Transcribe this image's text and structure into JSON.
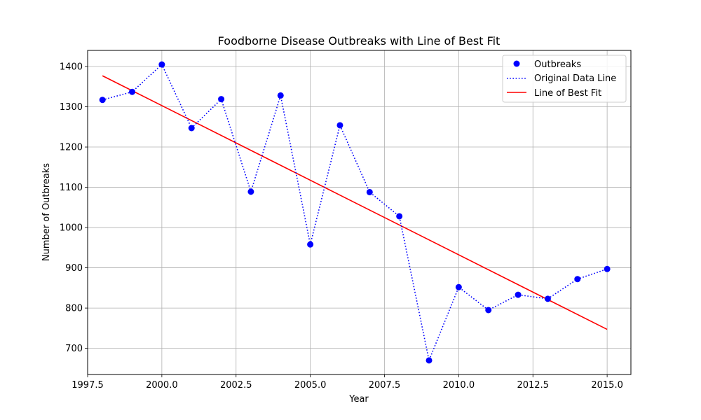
{
  "chart_data": {
    "type": "line",
    "title": "Foodborne Disease Outbreaks with Line of Best Fit",
    "xlabel": "Year",
    "ylabel": "Number of Outbreaks",
    "xlim": [
      1997.5,
      2015.8
    ],
    "ylim": [
      635,
      1440
    ],
    "x_ticks": [
      1997.5,
      2000.0,
      2002.5,
      2005.0,
      2007.5,
      2010.0,
      2012.5,
      2015.0
    ],
    "x_tick_labels": [
      "1997.5",
      "2000.0",
      "2002.5",
      "2005.0",
      "2007.5",
      "2010.0",
      "2012.5",
      "2015.0"
    ],
    "y_ticks": [
      700,
      800,
      900,
      1000,
      1100,
      1200,
      1300,
      1400
    ],
    "y_tick_labels": [
      "700",
      "800",
      "900",
      "1000",
      "1100",
      "1200",
      "1300",
      "1400"
    ],
    "grid": true,
    "legend_position": "top-right",
    "x": [
      1998,
      1999,
      2000,
      2001,
      2002,
      2003,
      2004,
      2005,
      2006,
      2007,
      2008,
      2009,
      2010,
      2011,
      2012,
      2013,
      2014,
      2015
    ],
    "series": [
      {
        "name": "Outbreaks",
        "style": "scatter",
        "color": "#0000ff",
        "values": [
          1317,
          1337,
          1405,
          1247,
          1319,
          1089,
          1328,
          958,
          1254,
          1088,
          1028,
          670,
          852,
          795,
          833,
          823,
          872,
          897
        ]
      },
      {
        "name": "Original Data Line",
        "style": "dotted-line",
        "color": "#0000ff",
        "values": [
          1317,
          1337,
          1405,
          1247,
          1319,
          1089,
          1328,
          958,
          1254,
          1088,
          1028,
          670,
          852,
          795,
          833,
          823,
          872,
          897
        ]
      },
      {
        "name": "Line of Best Fit",
        "style": "line",
        "color": "#ff0000",
        "x": [
          1998,
          2015
        ],
        "values": [
          1377,
          747
        ]
      }
    ]
  }
}
